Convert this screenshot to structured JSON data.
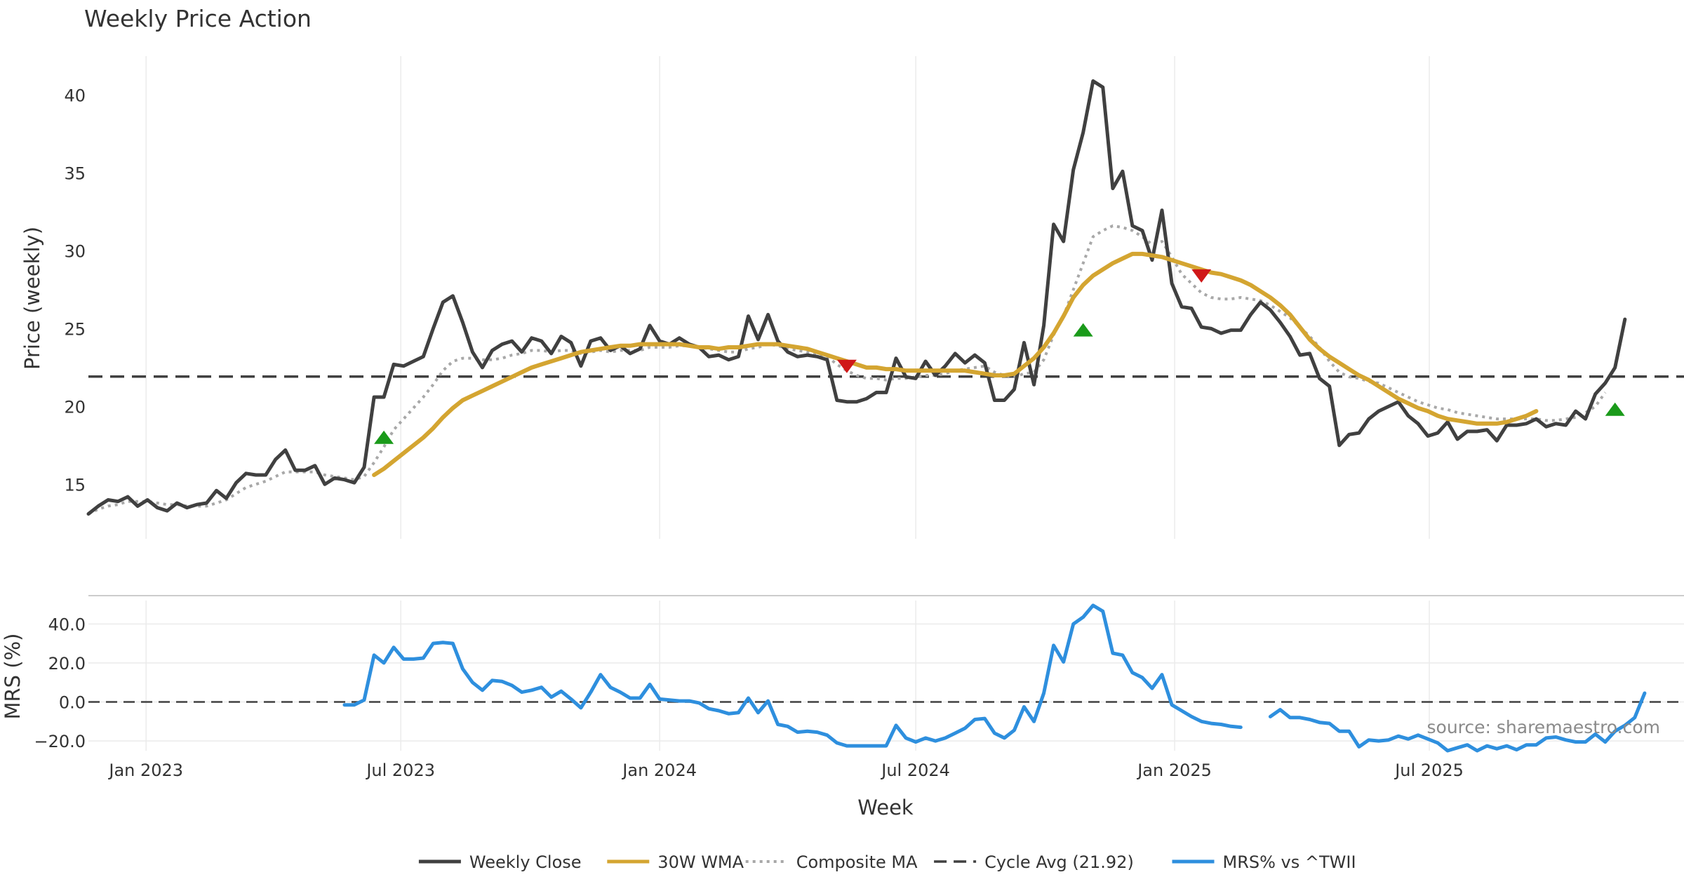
{
  "chart_data": [
    {
      "type": "line",
      "title": "Weekly Price Action",
      "xlabel": "",
      "ylabel": "Price (weekly)",
      "ylim": [
        11.5,
        42.5
      ],
      "xlim": [
        "2022-11-21",
        "2025-12-29"
      ],
      "grid": true,
      "yticks": [
        15,
        20,
        25,
        30,
        35,
        40
      ],
      "x_gridlines": [
        "2023-01-01",
        "2023-07-01",
        "2024-01-01",
        "2024-07-01",
        "2025-01-01",
        "2025-07-01"
      ],
      "x_start": "2022-11-21",
      "x_step_days": 7,
      "series": [
        {
          "name": "Weekly Close",
          "color": "#404040",
          "offset": 0,
          "values": [
            13.1,
            13.6,
            14.0,
            13.9,
            14.2,
            13.6,
            14.0,
            13.5,
            13.3,
            13.8,
            13.5,
            13.7,
            13.8,
            14.6,
            14.1,
            15.1,
            15.7,
            15.6,
            15.6,
            16.6,
            17.2,
            15.9,
            15.9,
            16.2,
            15.0,
            15.4,
            15.3,
            15.1,
            16.1,
            20.6,
            20.6,
            22.7,
            22.6,
            22.9,
            23.2,
            25.0,
            26.7,
            27.1,
            25.4,
            23.5,
            22.5,
            23.6,
            24.0,
            24.2,
            23.5,
            24.4,
            24.2,
            23.4,
            24.5,
            24.1,
            22.6,
            24.2,
            24.4,
            23.6,
            23.9,
            23.4,
            23.7,
            25.2,
            24.2,
            24.0,
            24.4,
            24.0,
            23.8,
            23.2,
            23.3,
            23.0,
            23.2,
            25.8,
            24.3,
            25.9,
            24.2,
            23.5,
            23.2,
            23.3,
            23.2,
            23.0,
            20.4,
            20.3,
            20.3,
            20.5,
            20.9,
            20.9,
            23.1,
            21.9,
            21.8,
            22.9,
            22.0,
            22.6,
            23.4,
            22.8,
            23.3,
            22.8,
            20.4,
            20.4,
            21.1,
            24.1,
            21.4,
            25.2,
            31.7,
            30.6,
            35.2,
            37.6,
            40.9,
            40.5,
            34.0,
            35.1,
            31.6,
            31.3,
            29.4,
            32.6,
            27.9,
            26.4,
            26.3,
            25.1,
            25.0,
            24.7,
            24.9,
            24.9,
            25.9,
            26.7,
            26.2,
            25.4,
            24.5,
            23.3,
            23.4,
            21.8,
            21.3,
            17.5,
            18.2,
            18.3,
            19.2,
            19.7,
            20.0,
            20.3,
            19.4,
            18.9,
            18.1,
            18.3,
            19.0,
            17.9,
            18.4,
            18.4,
            18.5,
            17.8,
            18.8,
            18.8,
            18.9,
            19.2,
            18.7,
            18.9,
            18.8,
            19.7,
            19.2,
            20.8,
            21.5,
            22.5,
            25.6
          ]
        },
        {
          "name": "30W WMA",
          "color": "#d4a531",
          "offset": 29,
          "values": [
            15.6,
            16.0,
            16.5,
            17.0,
            17.5,
            18.0,
            18.6,
            19.3,
            19.9,
            20.4,
            20.7,
            21.0,
            21.3,
            21.6,
            21.9,
            22.2,
            22.5,
            22.7,
            22.9,
            23.1,
            23.3,
            23.5,
            23.6,
            23.7,
            23.8,
            23.9,
            23.9,
            24.0,
            24.0,
            24.0,
            24.0,
            24.0,
            23.9,
            23.8,
            23.8,
            23.7,
            23.8,
            23.8,
            23.9,
            24.0,
            24.0,
            24.0,
            23.9,
            23.8,
            23.7,
            23.5,
            23.3,
            23.1,
            22.9,
            22.7,
            22.5,
            22.5,
            22.4,
            22.4,
            22.3,
            22.3,
            22.3,
            22.3,
            22.3,
            22.3,
            22.3,
            22.2,
            22.1,
            22.0,
            22.0,
            22.1,
            22.6,
            23.1,
            23.8,
            24.7,
            25.8,
            27.0,
            27.8,
            28.4,
            28.8,
            29.2,
            29.5,
            29.8,
            29.8,
            29.7,
            29.6,
            29.4,
            29.2,
            29.0,
            28.8,
            28.6,
            28.5,
            28.3,
            28.1,
            27.8,
            27.4,
            27.0,
            26.5,
            25.9,
            25.1,
            24.3,
            23.7,
            23.2,
            22.8,
            22.4,
            22.0,
            21.7,
            21.3,
            20.9,
            20.5,
            20.2,
            19.9,
            19.7,
            19.4,
            19.2,
            19.1,
            19.0,
            18.9,
            18.9,
            18.9,
            19.0,
            19.2,
            19.4,
            19.7
          ]
        },
        {
          "name": "Composite MA",
          "color": "#a8a8a8",
          "offset": 0,
          "values": [
            13.1,
            13.4,
            13.6,
            13.7,
            13.9,
            13.9,
            13.9,
            13.8,
            13.7,
            13.7,
            13.6,
            13.6,
            13.6,
            13.8,
            14.0,
            14.4,
            14.8,
            15.0,
            15.2,
            15.5,
            15.8,
            15.8,
            15.8,
            15.8,
            15.6,
            15.5,
            15.4,
            15.3,
            15.5,
            16.4,
            17.4,
            18.5,
            19.2,
            19.9,
            20.6,
            21.4,
            22.3,
            22.9,
            23.1,
            23.1,
            23.0,
            23.0,
            23.1,
            23.3,
            23.4,
            23.6,
            23.6,
            23.5,
            23.6,
            23.6,
            23.4,
            23.5,
            23.6,
            23.5,
            23.6,
            23.6,
            23.6,
            23.8,
            23.8,
            23.8,
            23.9,
            23.9,
            23.8,
            23.7,
            23.6,
            23.5,
            23.5,
            23.7,
            23.8,
            24.0,
            23.9,
            23.7,
            23.6,
            23.5,
            23.4,
            23.2,
            22.7,
            22.3,
            22.0,
            21.8,
            21.8,
            21.7,
            21.8,
            21.8,
            21.9,
            22.0,
            22.0,
            22.1,
            22.3,
            22.4,
            22.5,
            22.6,
            22.2,
            22.0,
            21.9,
            22.1,
            22.2,
            23.0,
            24.6,
            25.8,
            27.5,
            29.2,
            30.9,
            31.3,
            31.6,
            31.5,
            31.3,
            30.9,
            30.4,
            30.6,
            29.6,
            28.5,
            27.9,
            27.3,
            27.0,
            26.9,
            26.9,
            27.0,
            26.9,
            26.8,
            26.5,
            26.1,
            25.7,
            25.1,
            24.5,
            23.8,
            22.9,
            22.2,
            21.9,
            21.8,
            21.6,
            21.5,
            21.2,
            20.9,
            20.6,
            20.3,
            20.1,
            19.9,
            19.8,
            19.6,
            19.5,
            19.4,
            19.3,
            19.2,
            19.2,
            19.2,
            19.2,
            19.2,
            19.1,
            19.1,
            19.2,
            19.3,
            19.6,
            20.0,
            20.9
          ]
        },
        {
          "name": "Cycle Avg (21.92)",
          "color": "#404040",
          "type": "hline",
          "value": 21.92
        }
      ],
      "markers": [
        {
          "kind": "buy",
          "week": 30,
          "y": 18.0,
          "color": "#1a9a1a"
        },
        {
          "kind": "sell",
          "week": 77,
          "y": 22.6,
          "color": "#d01818"
        },
        {
          "kind": "buy",
          "week": 101,
          "y": 24.9,
          "color": "#1a9a1a"
        },
        {
          "kind": "sell",
          "week": 113,
          "y": 28.4,
          "color": "#d01818"
        },
        {
          "kind": "buy",
          "week": 155,
          "y": 19.8,
          "color": "#1a9a1a"
        }
      ]
    },
    {
      "type": "line",
      "title": "",
      "xlabel": "Week",
      "ylabel": "MRS (%)",
      "ylim": [
        -25,
        52
      ],
      "grid": true,
      "yticks": [
        -20,
        0,
        20,
        40
      ],
      "ytick_labels": [
        "−20.0",
        "0.0",
        "20.0",
        "40.0"
      ],
      "xtick_labels": [
        "Jan 2023",
        "Jul 2023",
        "Jan 2024",
        "Jul 2024",
        "Jan 2025",
        "Jul 2025"
      ],
      "annotation": "source: sharemaestro.com",
      "series": [
        {
          "name": "MRS% vs ^TWII",
          "color": "#2e8fde",
          "offset": 26,
          "values": [
            -1.5,
            -1.5,
            1.0,
            24.0,
            20.0,
            28.0,
            22.0,
            22.0,
            22.5,
            30.0,
            30.5,
            30.0,
            17.0,
            10.0,
            6.0,
            11.0,
            10.5,
            8.5,
            5.0,
            6.0,
            7.5,
            2.5,
            5.5,
            1.5,
            -3.0,
            5.0,
            14.0,
            7.5,
            5.0,
            2.0,
            2.0,
            9.0,
            1.5,
            1.0,
            0.5,
            0.5,
            -0.5,
            -3.5,
            -4.5,
            -6.0,
            -5.5,
            2.0,
            -5.5,
            0.5,
            -11.5,
            -12.5,
            -15.5,
            -15.0,
            -15.5,
            -17.0,
            -21.0,
            -22.5,
            -22.5,
            -22.5,
            -22.5,
            -22.5,
            -12.0,
            -18.5,
            -20.5,
            -18.5,
            -20.0,
            -18.5,
            -16.0,
            -13.5,
            -9.0,
            -8.5,
            -16.0,
            -18.5,
            -14.5,
            -2.5,
            -10.0,
            4.5,
            29.0,
            20.5,
            40.0,
            43.5,
            49.5,
            46.5,
            25.0,
            24.0,
            15.0,
            12.5,
            7.0,
            14.0,
            -1.5,
            -4.5,
            -7.5,
            -10.0,
            -11.0,
            -11.5,
            -12.5,
            -13.0,
            null,
            null,
            -7.5,
            -4.0,
            -8.0,
            -8.0,
            -9.0,
            -10.5,
            -11.0,
            -15.0,
            -15.0,
            -23.0,
            -19.5,
            -20.0,
            -19.5,
            -17.5,
            -19.0,
            -17.0,
            -19.0,
            -21.0,
            -25.0,
            -23.5,
            -22.0,
            -25.0,
            -22.5,
            -24.0,
            -22.5,
            -24.5,
            -22.0,
            -22.0,
            -18.5,
            -18.0,
            -19.5,
            -20.5,
            -20.5,
            -16.5,
            -20.5,
            -15.0,
            -12.0,
            -8.0,
            4.5
          ]
        },
        {
          "name": "zero-line",
          "type": "hline",
          "value": 0,
          "color": "#404040"
        }
      ]
    }
  ],
  "legend": {
    "placement": "bottom-center",
    "items": [
      {
        "label": "Weekly Close",
        "style": "solid",
        "color": "#404040"
      },
      {
        "label": "30W WMA",
        "style": "solid",
        "color": "#d4a531"
      },
      {
        "label": "Composite MA",
        "style": "dotted",
        "color": "#a8a8a8"
      },
      {
        "label": "Cycle Avg (21.92)",
        "style": "dashed",
        "color": "#404040"
      },
      {
        "label": "MRS% vs ^TWII",
        "style": "solid",
        "color": "#2e8fde"
      }
    ]
  }
}
